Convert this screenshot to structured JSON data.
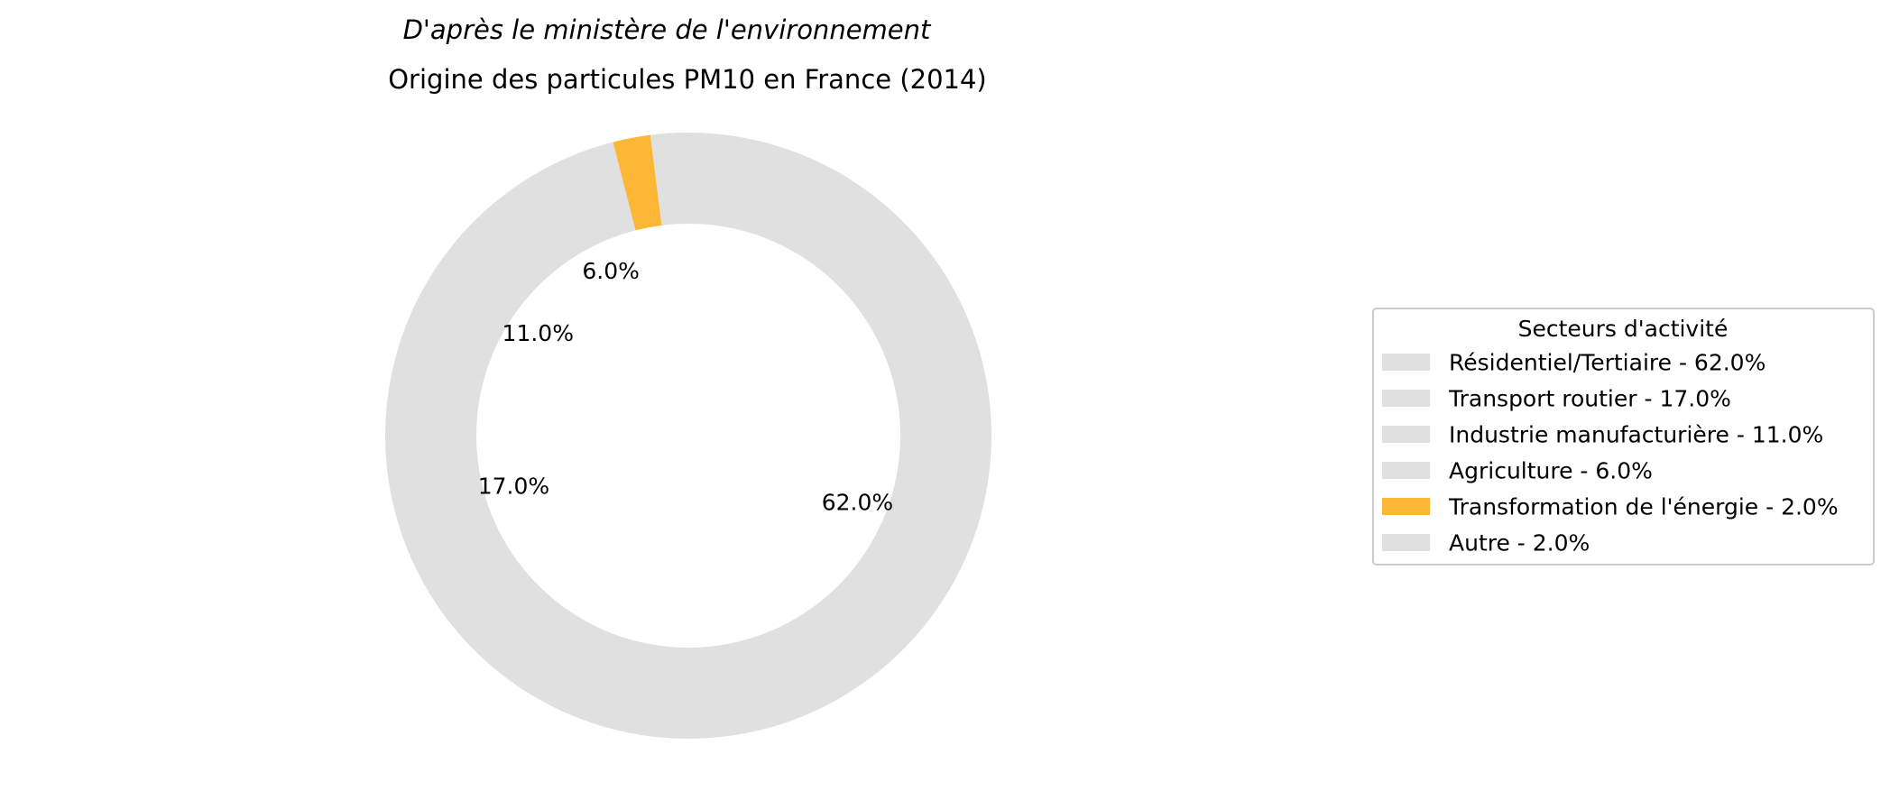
{
  "chart_data": {
    "type": "pie",
    "subtitle": "D'après le ministère de l'environnement",
    "title": "Origine des particules PM10 en France (2014)",
    "slices": [
      {
        "label": "Résidentiel/Tertiaire",
        "value": 62.0,
        "pct_label": "62.0%",
        "legend": "Résidentiel/Tertiaire - 62.0%",
        "color": "#e0e0e0"
      },
      {
        "label": "Transport routier",
        "value": 17.0,
        "pct_label": "17.0%",
        "legend": "Transport routier - 17.0%",
        "color": "#e0e0e0"
      },
      {
        "label": "Industrie manufacturière",
        "value": 11.0,
        "pct_label": "11.0%",
        "legend": "Industrie manufacturière - 11.0%",
        "color": "#e0e0e0"
      },
      {
        "label": "Agriculture",
        "value": 6.0,
        "pct_label": "6.0%",
        "legend": "Agriculture - 6.0%",
        "color": "#e0e0e0"
      },
      {
        "label": "Transformation de l'énergie",
        "value": 2.0,
        "pct_label": "",
        "legend": "Transformation de l'énergie - 2.0%",
        "color": "#fdb737"
      },
      {
        "label": "Autre",
        "value": 2.0,
        "pct_label": "",
        "legend": "Autre - 2.0%",
        "color": "#e0e0e0"
      }
    ],
    "legend": {
      "title": "Secteurs d'activité",
      "placement": "right"
    },
    "donut": true
  }
}
